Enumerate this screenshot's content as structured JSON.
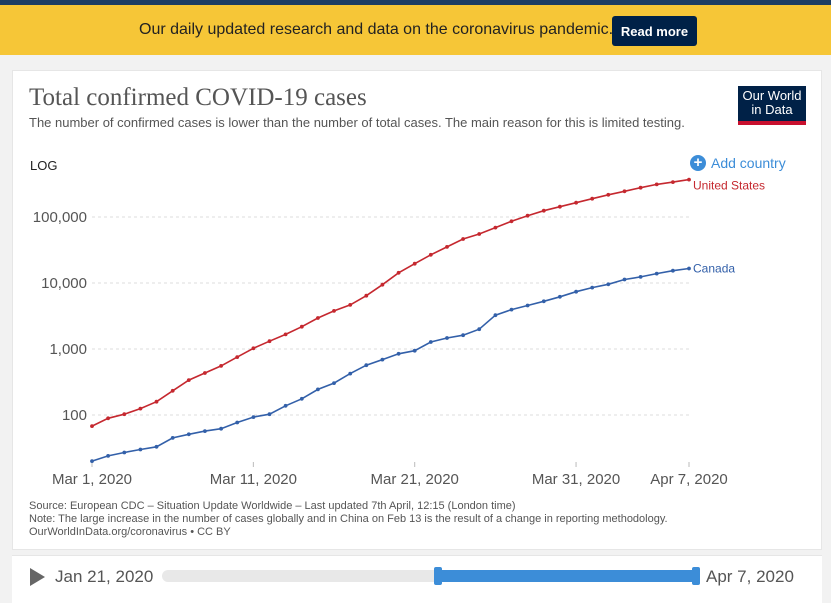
{
  "banner": {
    "text": "Our daily updated research and data on the coronavirus pandemic.",
    "button_label": "Read more"
  },
  "logo": {
    "line1": "Our World",
    "line2": "in Data"
  },
  "controls": {
    "log_label": "LOG",
    "add_country_label": "Add country",
    "add_icon": "plus-circle-icon"
  },
  "timeline": {
    "start_label": "Jan 21, 2020",
    "end_label": "Apr 7, 2020",
    "play_icon": "play-icon",
    "range_start": "Mar 1, 2020",
    "range_end": "Apr 7, 2020"
  },
  "notes": {
    "source": "Source: European CDC – Situation Update Worldwide – Last updated 7th April, 12:15 (London time)",
    "note": "Note: The large increase in the number of cases globally and in China on Feb 13 is the result of a change in reporting methodology.",
    "credit": "OurWorldInData.org/coronavirus • CC BY"
  },
  "colors": {
    "united_states": "#c5282f",
    "canada": "#3360a9",
    "accent": "#3c8dd8",
    "banner": "#f6c637"
  },
  "chart_data": {
    "type": "line",
    "title": "Total confirmed COVID-19 cases",
    "subtitle": "The number of confirmed cases is lower than the number of total cases. The main reason for this is limited testing.",
    "y_scale": "log",
    "ylim": [
      10,
      500000
    ],
    "y_ticks": [
      100,
      1000,
      10000,
      100000
    ],
    "y_tick_labels": [
      "100",
      "1,000",
      "10,000",
      "100,000"
    ],
    "x_ticks": [
      "Mar 1, 2020",
      "Mar 11, 2020",
      "Mar 21, 2020",
      "Mar 31, 2020",
      "Apr 7, 2020"
    ],
    "grid": true,
    "x": [
      "2020-03-01",
      "2020-03-02",
      "2020-03-03",
      "2020-03-04",
      "2020-03-05",
      "2020-03-06",
      "2020-03-07",
      "2020-03-08",
      "2020-03-09",
      "2020-03-10",
      "2020-03-11",
      "2020-03-12",
      "2020-03-13",
      "2020-03-14",
      "2020-03-15",
      "2020-03-16",
      "2020-03-17",
      "2020-03-18",
      "2020-03-19",
      "2020-03-20",
      "2020-03-21",
      "2020-03-22",
      "2020-03-23",
      "2020-03-24",
      "2020-03-25",
      "2020-03-26",
      "2020-03-27",
      "2020-03-28",
      "2020-03-29",
      "2020-03-30",
      "2020-03-31",
      "2020-04-01",
      "2020-04-02",
      "2020-04-03",
      "2020-04-04",
      "2020-04-05",
      "2020-04-06",
      "2020-04-07"
    ],
    "series": [
      {
        "name": "United States",
        "values": [
          68,
          89,
          103,
          125,
          159,
          233,
          338,
          433,
          554,
          754,
          1025,
          1312,
          1663,
          2174,
          2951,
          3774,
          4661,
          6427,
          9415,
          14250,
          19624,
          26747,
          35206,
          46442,
          55231,
          69194,
          85991,
          104686,
          124665,
          143025,
          164620,
          189618,
          216721,
          245540,
          277965,
          312237,
          337635,
          368196
        ]
      },
      {
        "name": "Canada",
        "values": [
          20,
          24,
          27,
          30,
          33,
          45,
          51,
          57,
          62,
          77,
          93,
          103,
          138,
          176,
          244,
          304,
          424,
          569,
          690,
          846,
          943,
          1278,
          1469,
          1619,
          1994,
          3251,
          3955,
          4556,
          5282,
          6177,
          7386,
          8527,
          9573,
          11283,
          12376,
          13882,
          15369,
          16563
        ]
      }
    ]
  }
}
